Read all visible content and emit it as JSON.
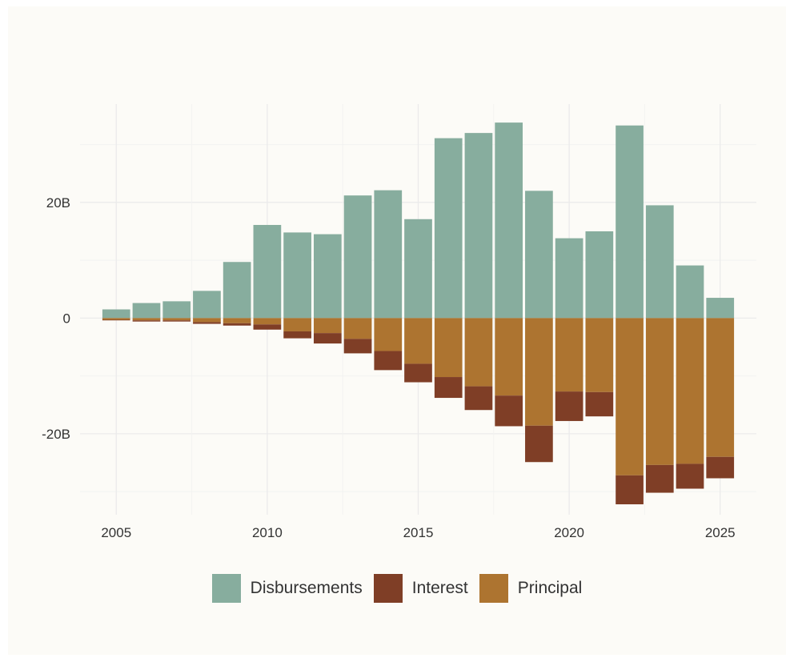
{
  "chart_data": {
    "type": "bar",
    "stacked": true,
    "x": [
      2005,
      2006,
      2007,
      2008,
      2009,
      2010,
      2011,
      2012,
      2013,
      2014,
      2015,
      2016,
      2017,
      2018,
      2019,
      2020,
      2021,
      2022,
      2023,
      2024,
      2025
    ],
    "series": [
      {
        "name": "Disbursements",
        "color": "#87ad9e",
        "values": [
          1.5,
          2.6,
          2.9,
          4.7,
          9.7,
          16.1,
          14.8,
          14.5,
          21.2,
          22.1,
          17.1,
          31.1,
          32.0,
          33.8,
          22.0,
          13.8,
          15.0,
          33.3,
          19.5,
          9.1,
          3.5
        ]
      },
      {
        "name": "Principal",
        "color": "#ad7430",
        "values": [
          -0.3,
          -0.4,
          -0.4,
          -0.7,
          -0.9,
          -1.1,
          -2.3,
          -2.6,
          -3.6,
          -5.7,
          -7.9,
          -10.2,
          -11.8,
          -13.4,
          -18.6,
          -12.7,
          -12.8,
          -27.2,
          -25.4,
          -25.2,
          -24.0
        ]
      },
      {
        "name": "Interest",
        "color": "#7f3e26",
        "values": [
          -0.1,
          -0.2,
          -0.2,
          -0.3,
          -0.4,
          -0.9,
          -1.2,
          -1.8,
          -2.5,
          -3.3,
          -3.2,
          -3.6,
          -4.1,
          -5.3,
          -6.3,
          -5.1,
          -4.2,
          -5.0,
          -4.8,
          -4.3,
          -3.7
        ]
      }
    ],
    "title": "",
    "xlabel": "",
    "ylabel": "",
    "ylim": [
      -34,
      37
    ],
    "xlim": [
      2003.8,
      2026.2
    ],
    "xticks": [
      2005,
      2010,
      2015,
      2020,
      2025
    ],
    "yticks": [
      -20,
      0,
      20
    ],
    "ytick_labels": [
      "-20B",
      "0",
      "20B"
    ],
    "grid": true,
    "legend_position": "bottom"
  },
  "legend": [
    {
      "label": "Disbursements",
      "color": "#87ad9e"
    },
    {
      "label": "Interest",
      "color": "#7f3e26"
    },
    {
      "label": "Principal",
      "color": "#ad7430"
    }
  ]
}
